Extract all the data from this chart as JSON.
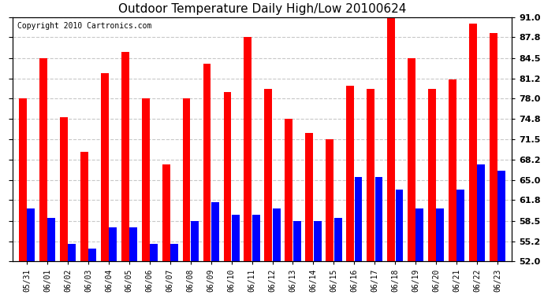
{
  "title": "Outdoor Temperature Daily High/Low 20100624",
  "copyright": "Copyright 2010 Cartronics.com",
  "ylim": [
    52.0,
    91.0
  ],
  "yticks": [
    52.0,
    55.2,
    58.5,
    61.8,
    65.0,
    68.2,
    71.5,
    74.8,
    78.0,
    81.2,
    84.5,
    87.8,
    91.0
  ],
  "background_color": "#ffffff",
  "grid_color": "#c8c8c8",
  "dates": [
    "05/31",
    "06/01",
    "06/02",
    "06/03",
    "06/04",
    "06/05",
    "06/06",
    "06/07",
    "06/08",
    "06/09",
    "06/10",
    "06/11",
    "06/12",
    "06/13",
    "06/14",
    "06/15",
    "06/16",
    "06/17",
    "06/18",
    "06/19",
    "06/20",
    "06/21",
    "06/22",
    "06/23"
  ],
  "highs": [
    78.0,
    84.5,
    75.0,
    69.5,
    82.0,
    85.5,
    78.0,
    67.5,
    78.0,
    83.5,
    79.0,
    87.8,
    79.5,
    74.8,
    72.5,
    71.5,
    80.0,
    79.5,
    91.0,
    84.5,
    79.5,
    81.0,
    90.0,
    88.5
  ],
  "lows": [
    60.5,
    59.0,
    54.8,
    54.0,
    57.5,
    57.5,
    54.8,
    54.8,
    58.5,
    61.5,
    59.5,
    59.5,
    60.5,
    58.5,
    58.5,
    59.0,
    65.5,
    65.5,
    63.5,
    60.5,
    60.5,
    63.5,
    67.5,
    66.5
  ],
  "high_color": "#ff0000",
  "low_color": "#0000ff",
  "bar_width": 0.38,
  "bar_gap": 0.02
}
